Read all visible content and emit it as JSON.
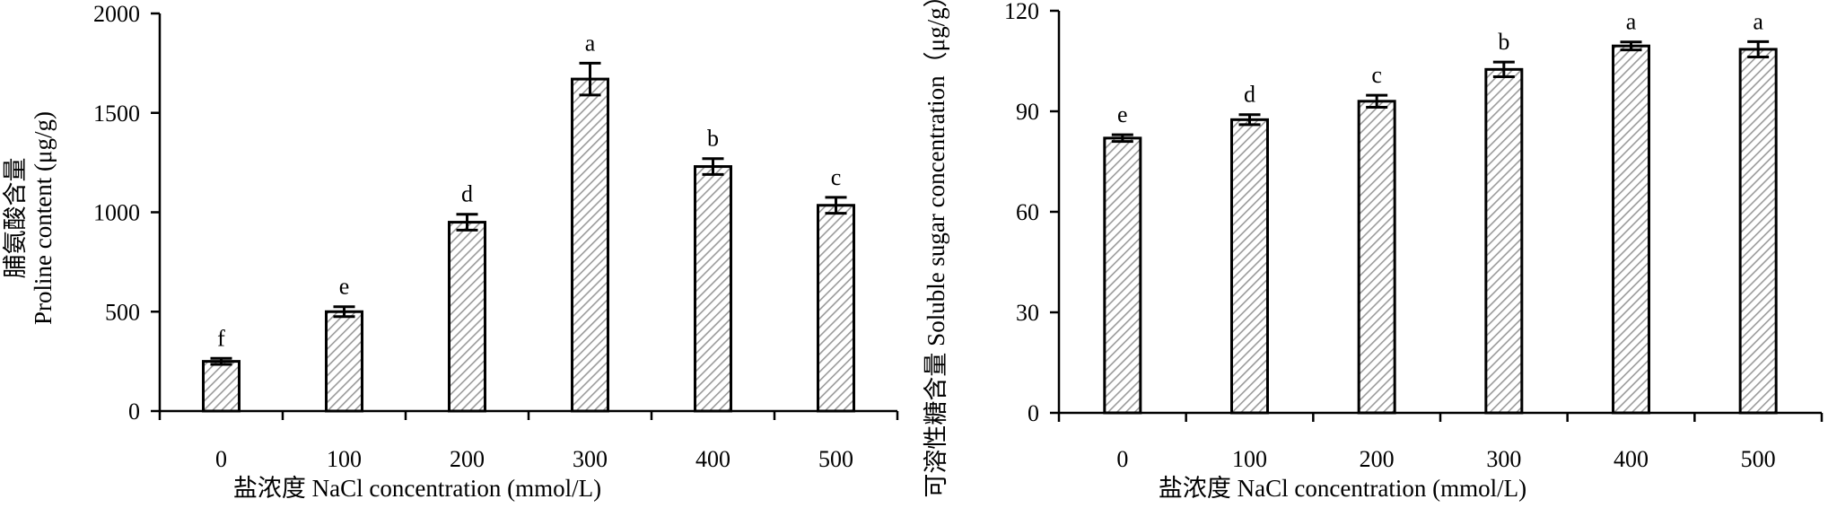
{
  "chart_data": [
    {
      "type": "bar",
      "categories": [
        "0",
        "100",
        "200",
        "300",
        "400",
        "500"
      ],
      "values": [
        250,
        500,
        950,
        1670,
        1230,
        1035
      ],
      "errors": [
        15,
        25,
        40,
        80,
        40,
        40
      ],
      "significance": [
        "f",
        "e",
        "d",
        "a",
        "b",
        "c"
      ],
      "yticks": [
        "0",
        "500",
        "1000",
        "1500",
        "2000"
      ],
      "ylim": [
        0,
        2000
      ],
      "ylabel_cn": "脯氨酸含量",
      "ylabel_en": "Proline content (μg/g)",
      "xlabel": "盐浓度 NaCl concentration (mmol/L)"
    },
    {
      "type": "bar",
      "categories": [
        "0",
        "100",
        "200",
        "300",
        "400",
        "500"
      ],
      "values": [
        82,
        87.5,
        93,
        102.5,
        109.5,
        108.5
      ],
      "errors": [
        1,
        1.5,
        1.8,
        2.2,
        1.2,
        2.3
      ],
      "significance": [
        "e",
        "d",
        "c",
        "b",
        "a",
        "a"
      ],
      "yticks": [
        "0",
        "30",
        "60",
        "90",
        "120"
      ],
      "ylim": [
        0,
        120
      ],
      "ylabel": "可溶性糖含量 Soluble sugar concentration（μg/g）",
      "xlabel": "盐浓度 NaCl concentration (mmol/L)"
    }
  ],
  "colors": {
    "axis": "#000000",
    "bar_edge": "#000000",
    "hatch": "#9a9a9a",
    "background": "#ffffff"
  }
}
